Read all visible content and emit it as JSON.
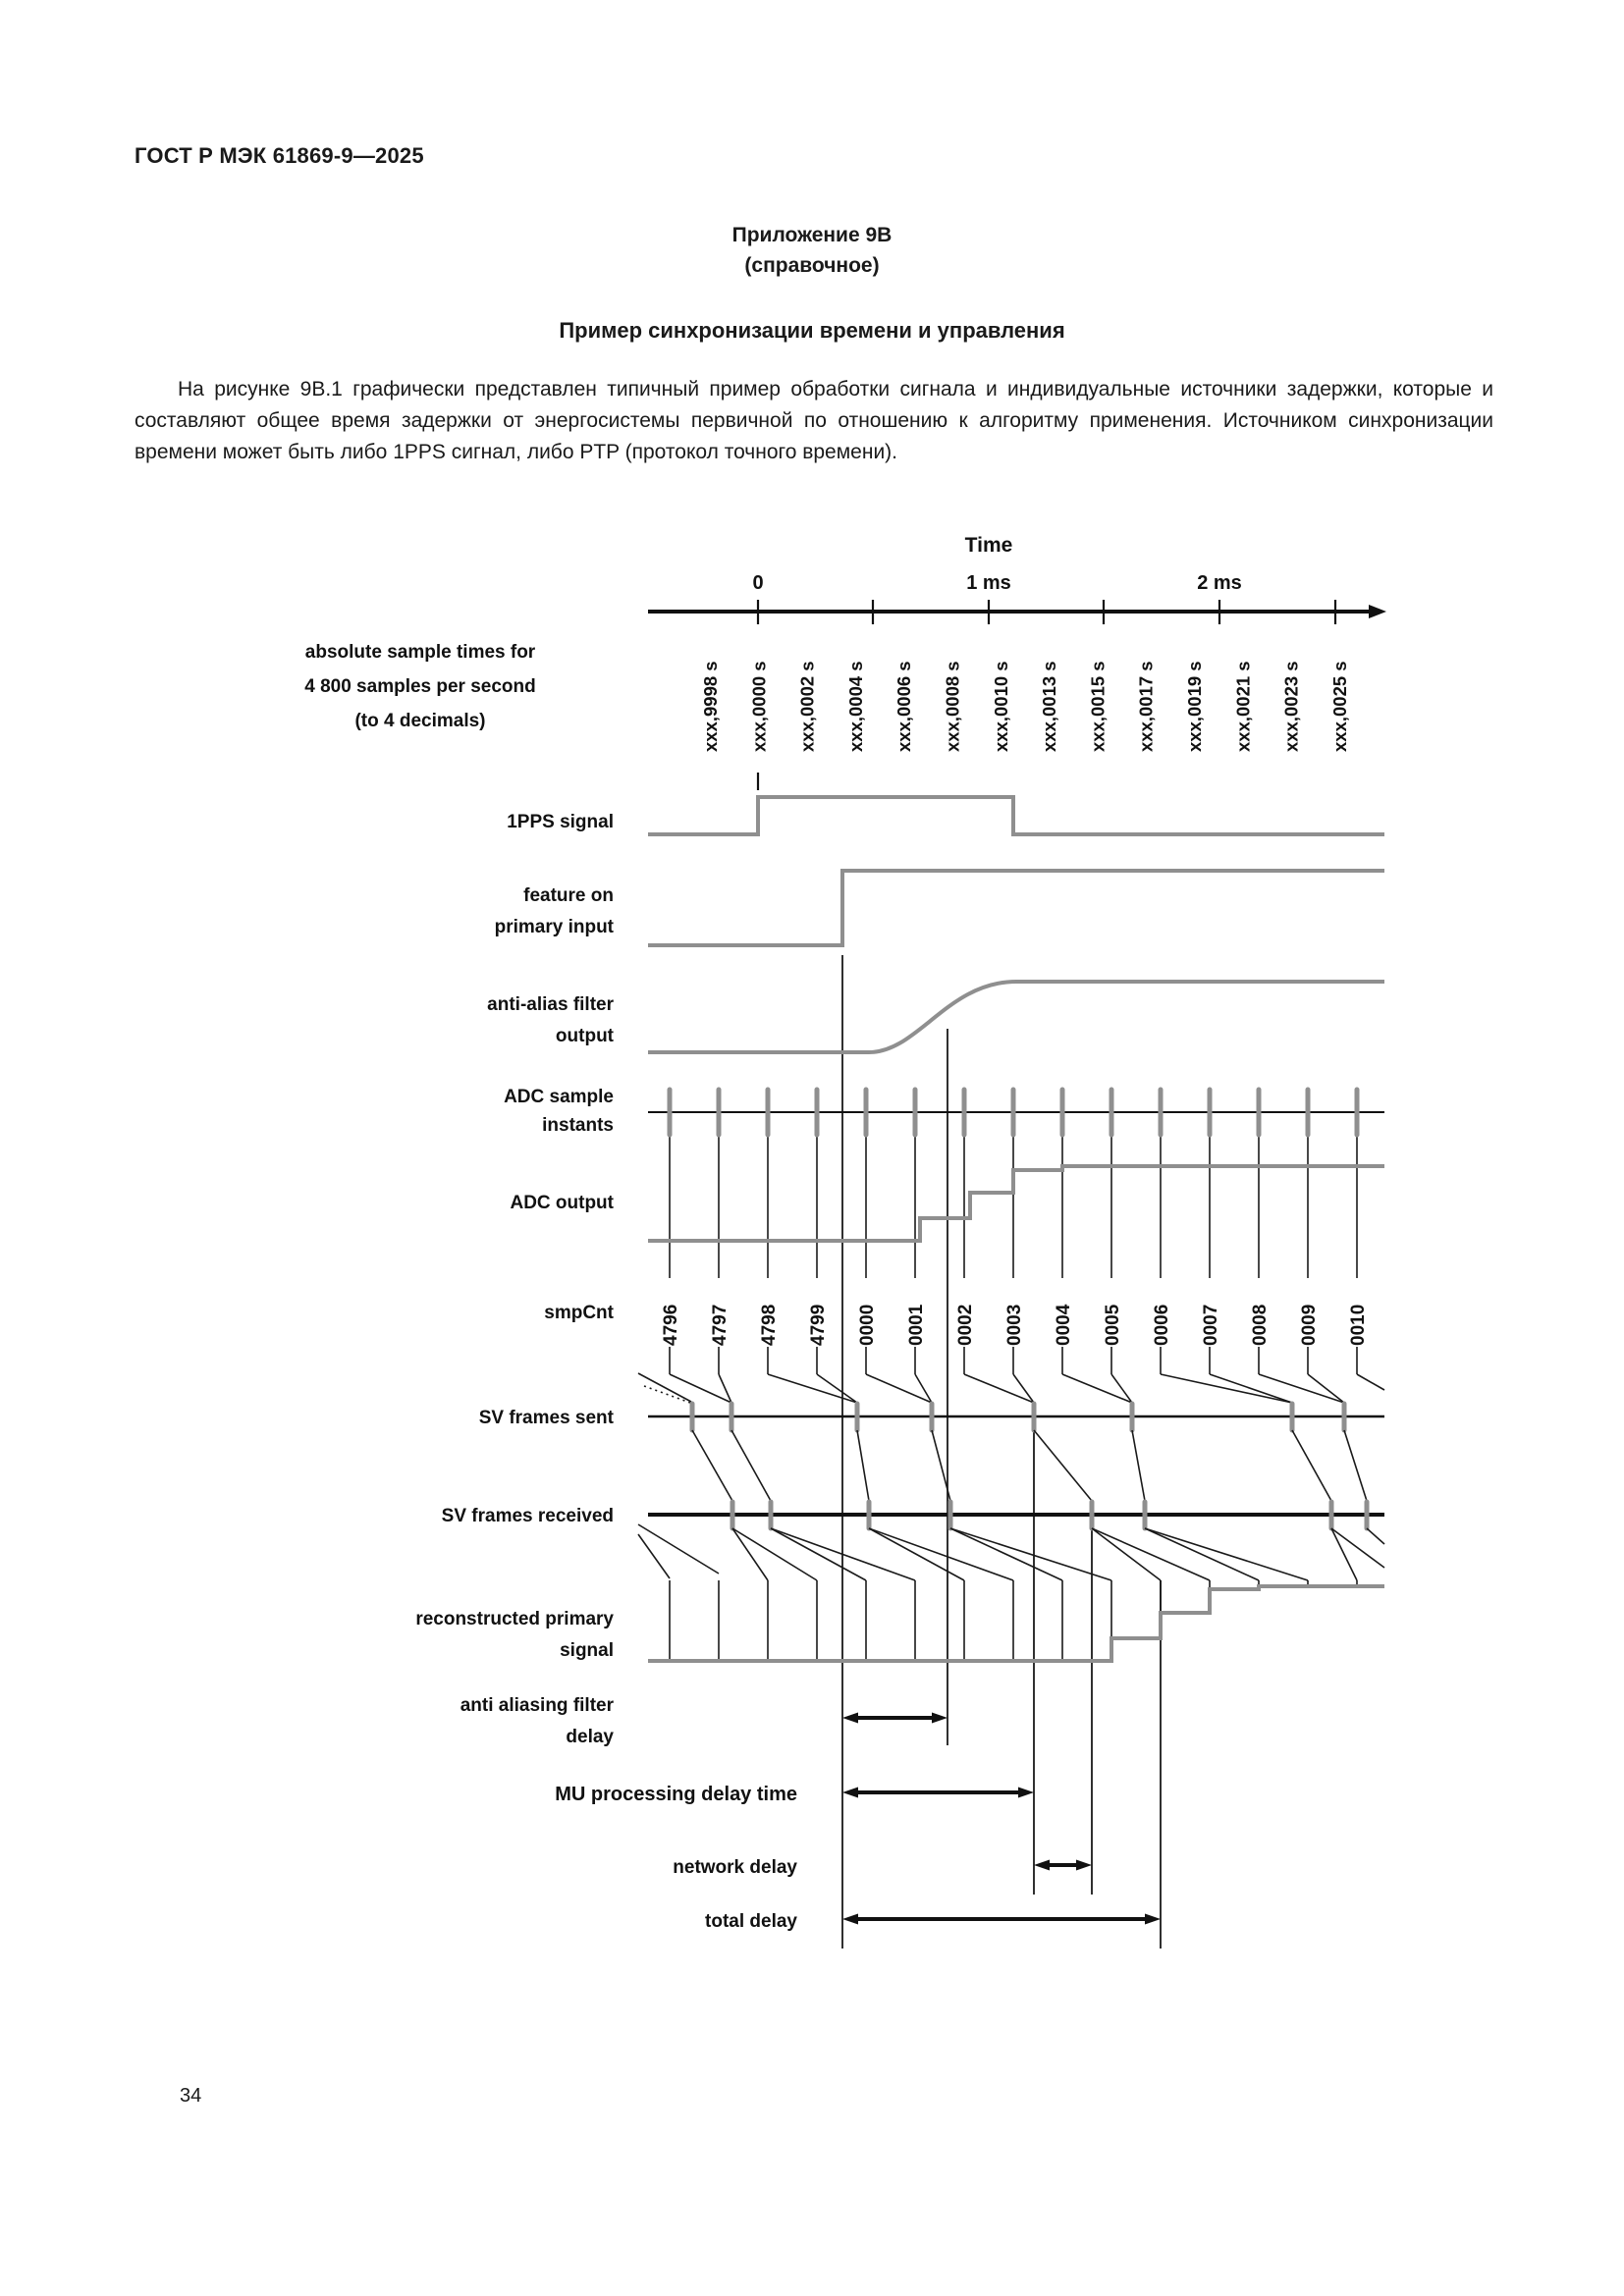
{
  "page": {
    "header": "ГОСТ Р МЭК 61869-9—2025",
    "appendix_title": "Приложение 9В",
    "appendix_subtitle": "(справочное)",
    "section_title": "Пример синхронизации времени и управления",
    "paragraph": "На рисунке 9В.1 графически представлен типичный пример обработки сигнала и индивидуальные источники задержки, которые и составляют общее время задержки от энергосистемы первичной по отношению к алгоритму применения. Источником синхронизации времени может быть либо 1PPS сигнал, либо PTP (протокол точного времени).",
    "page_number": "34"
  },
  "diagram": {
    "colors": {
      "signal_gray": "#8f8f8f",
      "ink": "#111111"
    },
    "time_axis": {
      "title": "Time",
      "tick_labels": [
        "0",
        "1 ms",
        "2 ms"
      ]
    },
    "sample_times_caption": [
      "absolute sample times for",
      "4 800 samples per second",
      "(to 4 decimals)"
    ],
    "absolute_sample_times": [
      "xxx,9998 s",
      "xxx,0000 s",
      "xxx,0002 s",
      "xxx,0004 s",
      "xxx,0006 s",
      "xxx,0008 s",
      "xxx,0010 s",
      "xxx,0013 s",
      "xxx,0015 s",
      "xxx,0017 s",
      "xxx,0019 s",
      "xxx,0021 s",
      "xxx,0023 s",
      "xxx,0025 s"
    ],
    "row_labels": {
      "pps": "1PPS signal",
      "feature": [
        "feature on",
        "primary input"
      ],
      "antialias": [
        "anti-alias filter",
        "output"
      ],
      "adc_instants": [
        "ADC sample",
        "instants"
      ],
      "adc_output": "ADC output",
      "smpcnt": "smpCnt",
      "sv_sent": "SV frames sent",
      "sv_received": "SV frames received",
      "reconstructed": [
        "reconstructed primary",
        "signal"
      ]
    },
    "smp_cnt": [
      "4796",
      "4797",
      "4798",
      "4799",
      "0000",
      "0001",
      "0002",
      "0003",
      "0004",
      "0005",
      "0006",
      "0007",
      "0008",
      "0009",
      "0010"
    ],
    "delays": {
      "antialias": [
        "anti aliasing filter",
        "delay"
      ],
      "mu": "MU processing delay time",
      "network": "network delay",
      "total": "total delay"
    }
  }
}
